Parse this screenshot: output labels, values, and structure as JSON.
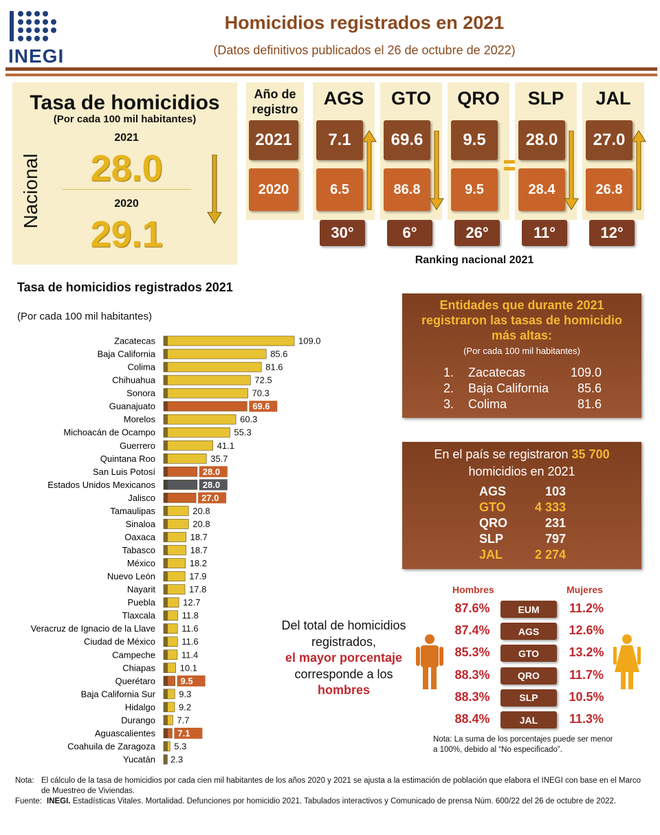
{
  "header": {
    "logo": "INEGI",
    "title": "Homicidios registrados en 2021",
    "subtitle": "(Datos definitivos publicados el 26 de octubre de 2022)"
  },
  "national": {
    "title": "Tasa de homicidios",
    "subtitle": "(Por cada 100 mil habitantes)",
    "label": "Nacional",
    "years": [
      "2021",
      "2020"
    ],
    "values": [
      "28.0",
      "29.1"
    ]
  },
  "states": {
    "year_header": "Año de registro",
    "years": [
      "2021",
      "2020"
    ],
    "items": [
      {
        "name": "AGS",
        "values": [
          "7.1",
          "6.5"
        ],
        "rank": "30°"
      },
      {
        "name": "GTO",
        "values": [
          "69.6",
          "86.8"
        ],
        "rank": "6°"
      },
      {
        "name": "QRO",
        "values": [
          "9.5",
          "9.5"
        ],
        "rank": "26°"
      },
      {
        "name": "SLP",
        "values": [
          "28.0",
          "28.4"
        ],
        "rank": "11°"
      },
      {
        "name": "JAL",
        "values": [
          "27.0",
          "26.8"
        ],
        "rank": "12°"
      }
    ],
    "ranking_label": "Ranking nacional 2021"
  },
  "chart_data": {
    "type": "bar",
    "orientation": "horizontal",
    "title": "Tasa de homicidios registrados 2021",
    "subtitle": "(Por cada 100 mil habitantes)",
    "categories": [
      "Zacatecas",
      "Baja California",
      "Colima",
      "Chihuahua",
      "Sonora",
      "Guanajuato",
      "Morelos",
      "Michoacán de Ocampo",
      "Guerrero",
      "Quintana Roo",
      "San Luis Potosí",
      "Estados Unidos Mexicanos",
      "Jalisco",
      "Tamaulipas",
      "Sinaloa",
      "Oaxaca",
      "Tabasco",
      "México",
      "Nuevo León",
      "Nayarit",
      "Puebla",
      "Tlaxcala",
      "Veracruz de Ignacio de la Llave",
      "Ciudad de México",
      "Campeche",
      "Chiapas",
      "Querétaro",
      "Baja California Sur",
      "Hidalgo",
      "Durango",
      "Aguascalientes",
      "Coahuila de Zaragoza",
      "Yucatán"
    ],
    "values": [
      109.0,
      85.6,
      81.6,
      72.5,
      70.3,
      69.6,
      60.3,
      55.3,
      41.1,
      35.7,
      28.0,
      28.0,
      27.0,
      20.8,
      20.8,
      18.7,
      18.7,
      18.2,
      17.9,
      17.8,
      12.7,
      11.8,
      11.6,
      11.6,
      11.4,
      10.1,
      9.5,
      9.3,
      9.2,
      7.7,
      7.1,
      5.3,
      2.3
    ],
    "value_labels": [
      "109.0",
      "85.6",
      "81.6",
      "72.5",
      "70.3",
      "69.6",
      "60.3",
      "55.3",
      "41.1",
      "35.7",
      "28.0",
      "28.0",
      "27.0",
      "20.8",
      "20.8",
      "18.7",
      "18.7",
      "18.2",
      "17.9",
      "17.8",
      "12.7",
      "11.8",
      "11.6",
      "11.6",
      "11.4",
      "10.1",
      "9.5",
      "9.3",
      "9.2",
      "7.7",
      "7.1",
      "5.3",
      "2.3"
    ],
    "color": "#e7c232",
    "colors": [
      "#e7c232",
      "#e7c232",
      "#e7c232",
      "#e7c232",
      "#e7c232",
      "#c8602a",
      "#e7c232",
      "#e7c232",
      "#e7c232",
      "#e7c232",
      "#c8602a",
      "#55575c",
      "#c8602a",
      "#e7c232",
      "#e7c232",
      "#e7c232",
      "#e7c232",
      "#e7c232",
      "#e7c232",
      "#e7c232",
      "#e7c232",
      "#e7c232",
      "#e7c232",
      "#e7c232",
      "#e7c232",
      "#e7c232",
      "#c8602a",
      "#e7c232",
      "#e7c232",
      "#e7c232",
      "#c8602a",
      "#e7c232",
      "#e7c232"
    ]
  },
  "top_entities": {
    "title": "Entidades que durante 2021 registraron las tasas de homicidio más altas:",
    "subtitle": "(Por cada 100 mil habitantes)",
    "rows": [
      [
        "1.",
        "Zacatecas",
        "109.0"
      ],
      [
        "2.",
        "Baja California",
        "85.6"
      ],
      [
        "3.",
        "Colima",
        "81.6"
      ]
    ]
  },
  "country_total": {
    "text_before": "En el país se registraron",
    "total": "35 700",
    "text_after": "homicidios en 2021",
    "rows": [
      [
        "AGS",
        "103"
      ],
      [
        "GTO",
        "4 333"
      ],
      [
        "QRO",
        "231"
      ],
      [
        "SLP",
        "797"
      ],
      [
        "JAL",
        "2 274"
      ]
    ],
    "highlight": [
      "GTO",
      "JAL"
    ]
  },
  "gender": {
    "men_header": "Hombres",
    "women_header": "Mujeres",
    "rows": [
      [
        "87.6%",
        "EUM",
        "11.2%"
      ],
      [
        "87.4%",
        "AGS",
        "12.6%"
      ],
      [
        "85.3%",
        "GTO",
        "13.2%"
      ],
      [
        "88.3%",
        "QRO",
        "11.7%"
      ],
      [
        "88.3%",
        "SLP",
        "10.5%"
      ],
      [
        "88.4%",
        "JAL",
        "11.3%"
      ]
    ],
    "text": [
      "Del total de homicidios",
      "registrados,",
      "el mayor porcentaje",
      "corresponde a los",
      "hombres"
    ],
    "note": "Nota: La suma de los porcentajes puede ser menor a 100%, debido al “No especificado”."
  },
  "footer": {
    "note_label": "Nota:",
    "note": "El cálculo de la tasa de homicidios por cada cien mil habitantes de los años 2020 y 2021 se ajusta a la estimación de población que elabora el INEGI con base en el Marco de Muestreo de Viviendas.",
    "source_label": "Fuente:",
    "source_org": "INEGI.",
    "source": "Estadísticas Vitales. Mortalidad. Defunciones por homicidio 2021. Tabulados interactivos y Comunicado de prensa Núm. 600/22 del 26 de octubre de 2022."
  }
}
